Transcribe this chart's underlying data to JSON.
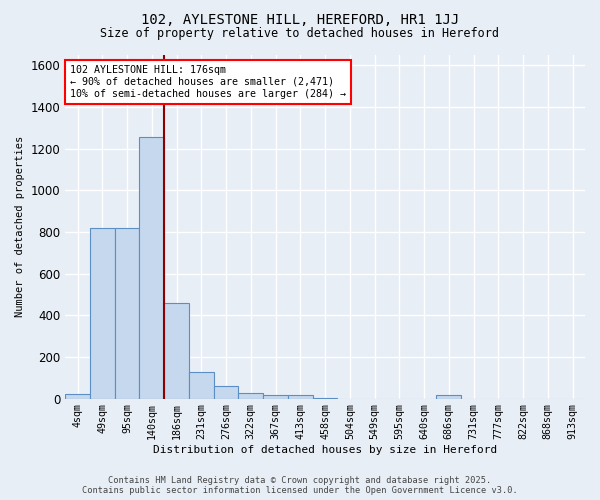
{
  "title": "102, AYLESTONE HILL, HEREFORD, HR1 1JJ",
  "subtitle": "Size of property relative to detached houses in Hereford",
  "xlabel": "Distribution of detached houses by size in Hereford",
  "ylabel": "Number of detached properties",
  "bar_color": "#c5d8ed",
  "bar_edge_color": "#5b8fc4",
  "background_color": "#e8eef6",
  "grid_color": "#ffffff",
  "categories": [
    "4sqm",
    "49sqm",
    "95sqm",
    "140sqm",
    "186sqm",
    "231sqm",
    "276sqm",
    "322sqm",
    "367sqm",
    "413sqm",
    "458sqm",
    "504sqm",
    "549sqm",
    "595sqm",
    "640sqm",
    "686sqm",
    "731sqm",
    "777sqm",
    "822sqm",
    "868sqm",
    "913sqm"
  ],
  "values": [
    20,
    820,
    820,
    1255,
    460,
    130,
    62,
    25,
    15,
    15,
    3,
    0,
    0,
    0,
    0,
    15,
    0,
    0,
    0,
    0,
    0
  ],
  "red_line_x": 3.5,
  "annotation_text": "102 AYLESTONE HILL: 176sqm\n← 90% of detached houses are smaller (2,471)\n10% of semi-detached houses are larger (284) →",
  "ylim": [
    0,
    1650
  ],
  "yticks": [
    0,
    200,
    400,
    600,
    800,
    1000,
    1200,
    1400,
    1600
  ],
  "footer_line1": "Contains HM Land Registry data © Crown copyright and database right 2025.",
  "footer_line2": "Contains public sector information licensed under the Open Government Licence v3.0."
}
